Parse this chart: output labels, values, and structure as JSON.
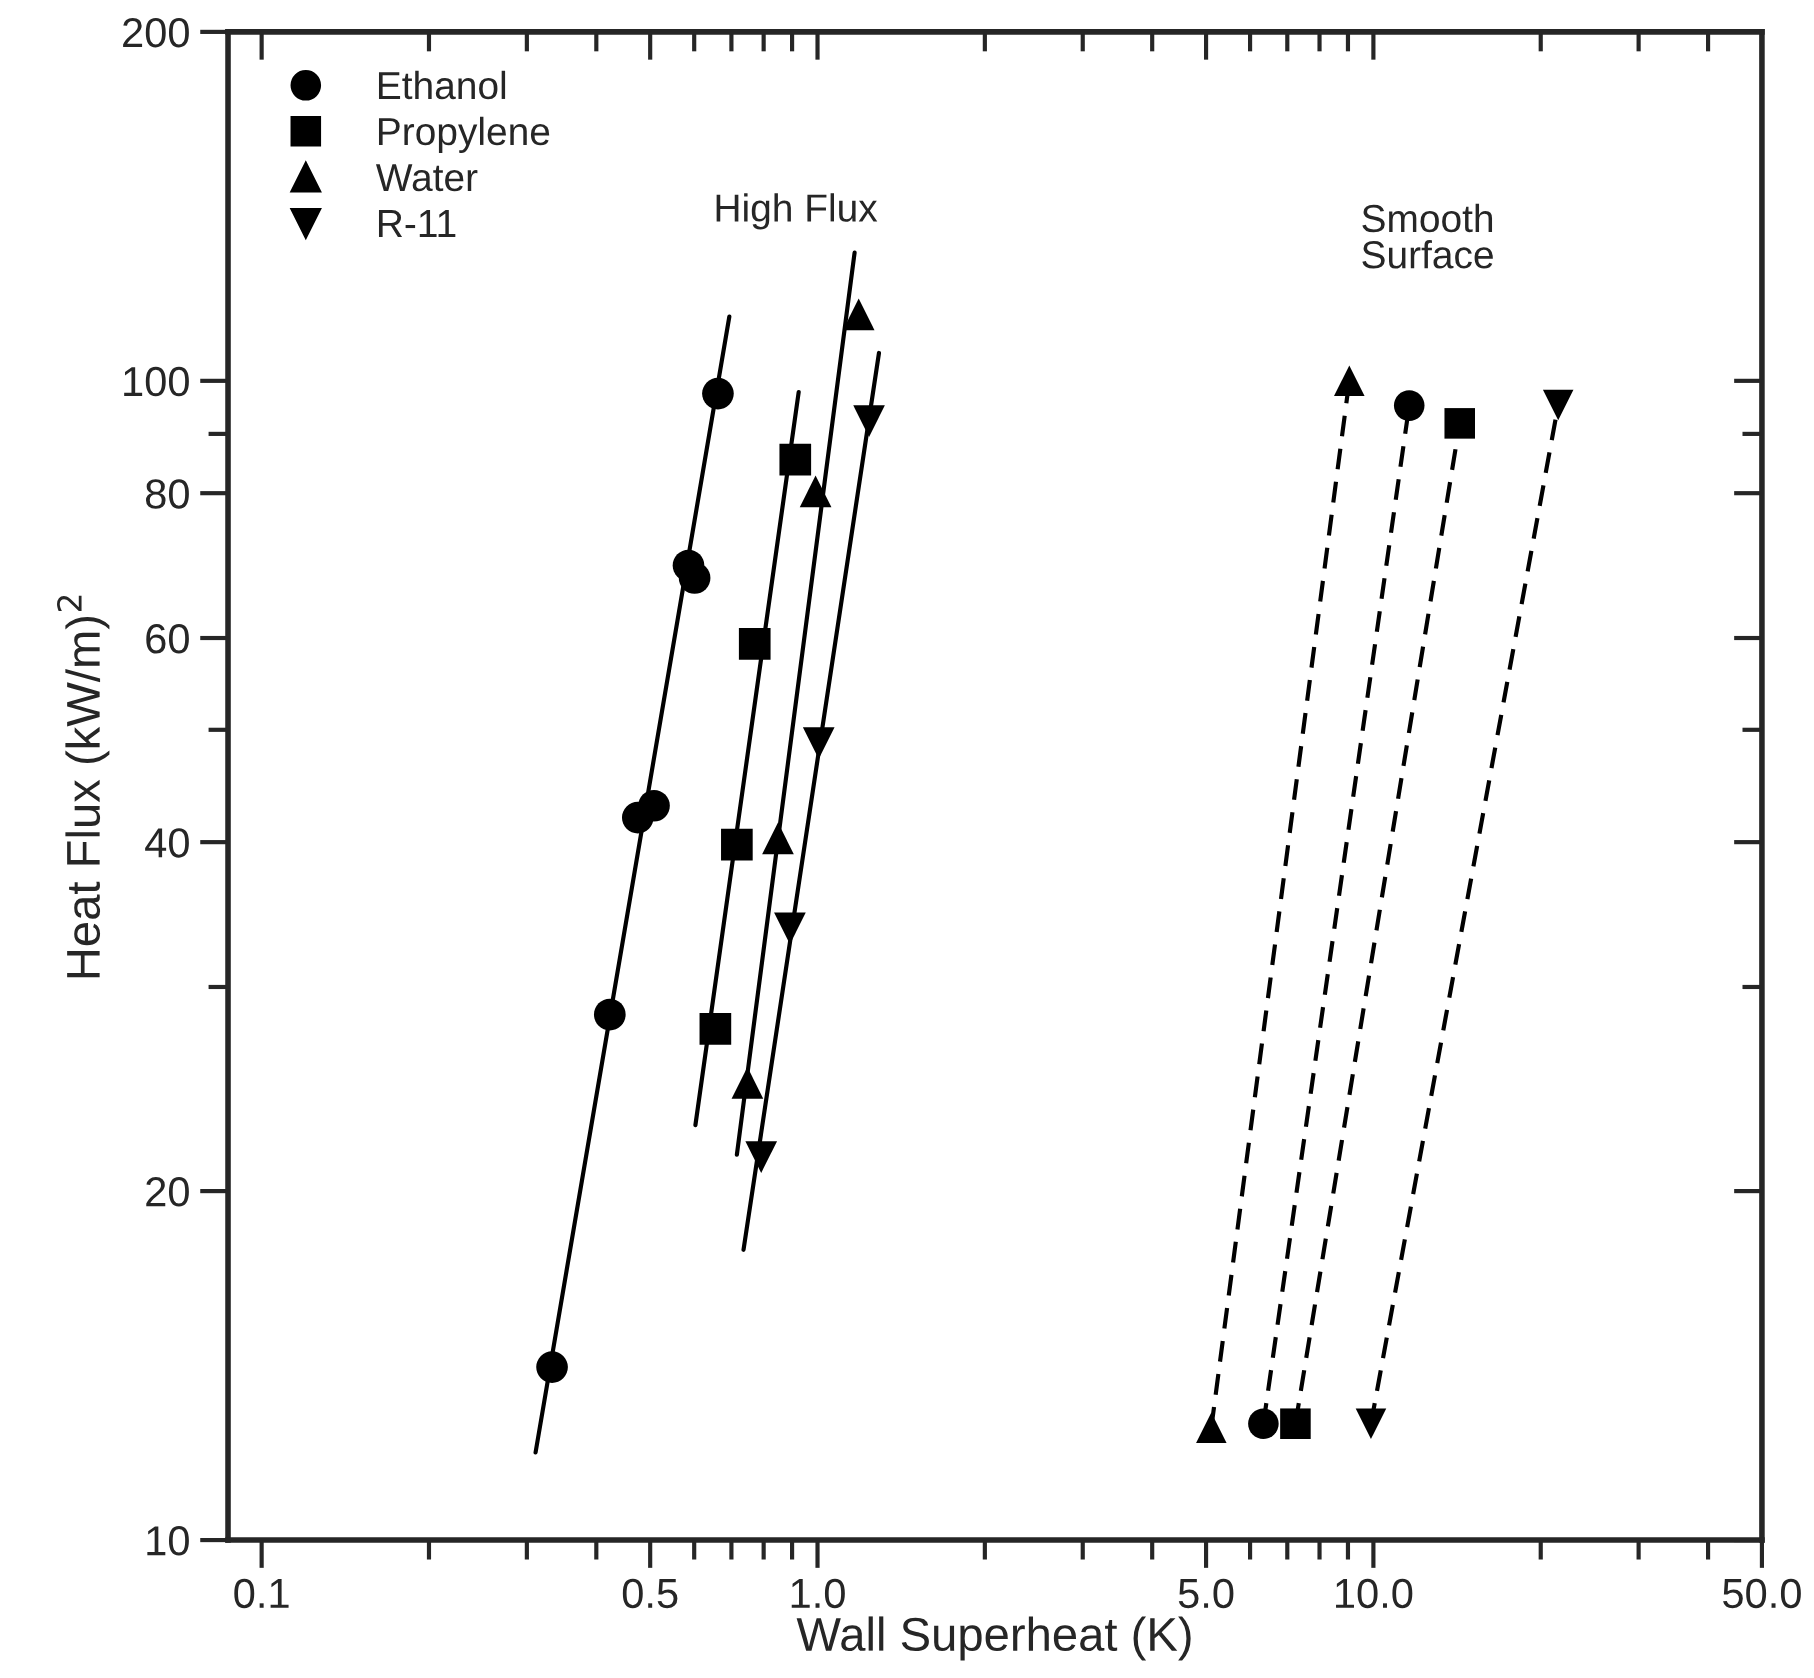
{
  "chart_data": {
    "type": "scatter",
    "xlabel": "Wall Superheat (K)",
    "ylabel": "Heat Flux (kW/m)$^{2}$",
    "log": "xy",
    "legend": "top left",
    "grid": false,
    "xlim": [
      0.087,
      50
    ],
    "ylim": [
      10,
      200
    ],
    "xticks": [
      0.1,
      {
        "value": 0.2,
        "label": null
      },
      {
        "value": 0.3,
        "label": null
      },
      {
        "value": 0.4,
        "label": null
      },
      0.5,
      {
        "value": 0.6,
        "label": null
      },
      {
        "value": 0.7,
        "label": null
      },
      {
        "value": 0.8,
        "label": null
      },
      {
        "value": 0.9,
        "label": null
      },
      {
        "value": 1,
        "label": "1.0"
      },
      {
        "value": 2,
        "label": null
      },
      {
        "value": 3,
        "label": null
      },
      {
        "value": 4,
        "label": null
      },
      {
        "value": 5,
        "label": "5.0"
      },
      {
        "value": 6,
        "label": null
      },
      {
        "value": 7,
        "label": null
      },
      {
        "value": 8,
        "label": null
      },
      {
        "value": 9,
        "label": null
      },
      {
        "value": 10,
        "label": "10.0"
      },
      {
        "value": 20,
        "label": null
      },
      {
        "value": 30,
        "label": null
      },
      {
        "value": 40,
        "label": null
      },
      {
        "value": 50,
        "label": "50.0"
      }
    ],
    "yticks": [
      10,
      20,
      {
        "value": 30,
        "label": null
      },
      40,
      {
        "value": 50,
        "label": null
      },
      60,
      80,
      {
        "value": 90,
        "label": null
      },
      100,
      200
    ],
    "annotations": [
      "High Flux",
      "Smooth\nSurface"
    ],
    "series": [
      {
        "name": "Ethanol",
        "marker": "circle",
        "color": "#000000",
        "x": [
          0.333,
          0.423,
          0.475,
          0.508,
          0.586,
          0.601,
          0.662
        ],
        "values": [
          14.1,
          28.4,
          42.0,
          43.0,
          69.3,
          67.6,
          97.5
        ]
      },
      {
        "name": "Propylene",
        "marker": "square",
        "color": "#000000",
        "x": [
          0.655,
          0.716,
          0.771,
          0.912
        ],
        "values": [
          27.6,
          39.8,
          59.3,
          85.5
        ]
      },
      {
        "name": "Water",
        "marker": "triangle",
        "color": "#000000",
        "x": [
          0.748,
          0.849,
          0.992,
          1.186
        ],
        "values": [
          24.8,
          40.3,
          80.3,
          114.1
        ]
      },
      {
        "name": "R-11",
        "marker": "triangle_down",
        "color": "#000000",
        "x": [
          0.792,
          0.892,
          1.005,
          1.238
        ],
        "values": [
          21.4,
          33.7,
          48.7,
          92.3
        ]
      },
      {
        "type": "line",
        "line_style": "solid",
        "marker": "none",
        "color": "#000000",
        "x": [
          0.311,
          0.694
        ],
        "values": [
          11.9,
          113.6
        ]
      },
      {
        "type": "line",
        "line_style": "solid",
        "marker": "none",
        "color": "#000000",
        "x": [
          0.603,
          0.925
        ],
        "values": [
          22.8,
          97.8
        ]
      },
      {
        "type": "line",
        "line_style": "solid",
        "marker": "none",
        "color": "#000000",
        "x": [
          0.716,
          1.166
        ],
        "values": [
          21.5,
          129
        ]
      },
      {
        "type": "line",
        "line_style": "solid",
        "marker": "none",
        "color": "#000000",
        "x": [
          0.736,
          1.29
        ],
        "values": [
          17.8,
          105.7
        ]
      },
      {
        "type": "line",
        "line_style": "dashed",
        "marker": "triangle",
        "color": "#000000",
        "x": [
          5.11,
          9.05
        ],
        "values": [
          12.5,
          100
        ]
      },
      {
        "type": "line",
        "line_style": "dashed",
        "marker": "circle",
        "color": "#000000",
        "x": [
          6.34,
          11.6
        ],
        "values": [
          12.6,
          95.2
        ]
      },
      {
        "type": "line",
        "line_style": "dashed",
        "marker": "square",
        "color": "#000000",
        "x": [
          7.24,
          14.3
        ],
        "values": [
          12.6,
          91.9
        ]
      },
      {
        "type": "line",
        "line_style": "dashed",
        "marker": "triangle_down",
        "color": "#000000",
        "x": [
          9.9,
          21.5
        ],
        "values": [
          12.6,
          95.3
        ]
      }
    ]
  }
}
